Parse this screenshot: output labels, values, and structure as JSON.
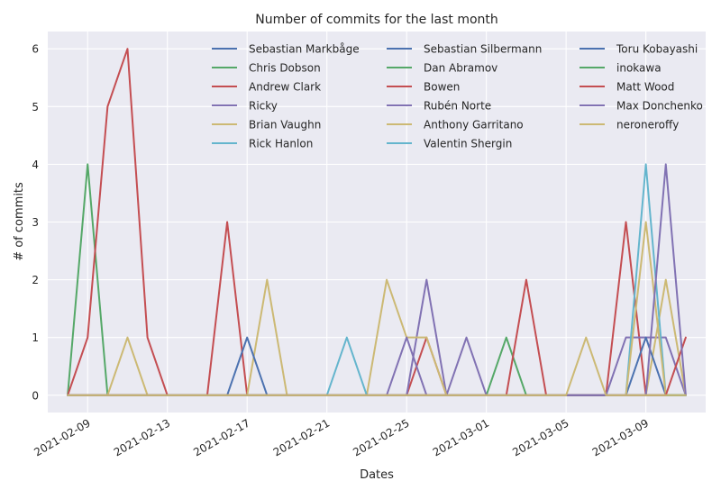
{
  "chart_data": {
    "type": "line",
    "title": "Number of commits for the last month",
    "xlabel": "Dates",
    "ylabel": "# of commits",
    "x_start": "2021-02-08",
    "x_end": "2021-03-11",
    "xlim": [
      "2021-02-07",
      "2021-03-12"
    ],
    "ylim": [
      -0.3,
      6.3
    ],
    "yticks": [
      0,
      1,
      2,
      3,
      4,
      5,
      6
    ],
    "xtick_labels": [
      "2021-02-09",
      "2021-02-13",
      "2021-02-17",
      "2021-02-21",
      "2021-02-25",
      "2021-03-01",
      "2021-03-05",
      "2021-03-09"
    ],
    "grid": true,
    "legend": {
      "placement": "top-right",
      "columns": 3
    },
    "colors": {
      "background": "#eaeaf2",
      "grid": "#ffffff",
      "text": "#262626"
    },
    "series": [
      {
        "name": "Sebastian Markbåge",
        "color": "#4c72b0",
        "values": [
          0,
          0,
          0,
          0,
          0,
          0,
          0,
          0,
          0,
          0,
          0,
          0,
          0,
          0,
          0,
          0,
          0,
          0,
          0,
          0,
          0,
          0,
          0,
          0,
          0,
          0,
          0,
          0,
          0,
          0,
          0,
          0
        ]
      },
      {
        "name": "Chris Dobson",
        "color": "#55a868",
        "values": [
          0,
          4,
          0,
          0,
          0,
          0,
          0,
          0,
          0,
          0,
          0,
          0,
          0,
          0,
          0,
          0,
          0,
          0,
          0,
          0,
          0,
          0,
          1,
          0,
          0,
          0,
          0,
          0,
          0,
          0,
          0,
          0
        ]
      },
      {
        "name": "Andrew Clark",
        "color": "#c44e52",
        "values": [
          0,
          1,
          5,
          6,
          1,
          0,
          0,
          0,
          3,
          0,
          0,
          0,
          0,
          0,
          0,
          0,
          0,
          0,
          1,
          0,
          0,
          0,
          0,
          2,
          0,
          0,
          0,
          0,
          3,
          0,
          0,
          0
        ]
      },
      {
        "name": "Ricky",
        "color": "#8172b3",
        "values": [
          0,
          0,
          0,
          0,
          0,
          0,
          0,
          0,
          0,
          0,
          0,
          0,
          0,
          0,
          0,
          0,
          0,
          0,
          2,
          0,
          1,
          0,
          0,
          0,
          0,
          0,
          0,
          0,
          1,
          1,
          1,
          0
        ]
      },
      {
        "name": "Brian Vaughn",
        "color": "#ccb974",
        "values": [
          0,
          0,
          0,
          1,
          0,
          0,
          0,
          0,
          0,
          0,
          2,
          0,
          0,
          0,
          0,
          0,
          2,
          1,
          1,
          0,
          0,
          0,
          0,
          0,
          0,
          0,
          0,
          0,
          0,
          0,
          2,
          0
        ]
      },
      {
        "name": "Rick Hanlon",
        "color": "#64b5cd",
        "values": [
          0,
          0,
          0,
          0,
          0,
          0,
          0,
          0,
          0,
          0,
          0,
          0,
          0,
          0,
          1,
          0,
          0,
          0,
          0,
          0,
          0,
          0,
          0,
          0,
          0,
          0,
          0,
          0,
          0,
          4,
          0,
          0
        ]
      },
      {
        "name": "Sebastian Silbermann",
        "color": "#4c72b0",
        "values": [
          0,
          0,
          0,
          0,
          0,
          0,
          0,
          0,
          0,
          1,
          0,
          0,
          0,
          0,
          0,
          0,
          0,
          0,
          0,
          0,
          0,
          0,
          0,
          0,
          0,
          0,
          0,
          0,
          0,
          1,
          0,
          0
        ]
      },
      {
        "name": "Dan Abramov",
        "color": "#55a868",
        "values": [
          0,
          0,
          0,
          0,
          0,
          0,
          0,
          0,
          0,
          0,
          0,
          0,
          0,
          0,
          0,
          0,
          0,
          0,
          0,
          0,
          0,
          0,
          0,
          0,
          0,
          0,
          0,
          0,
          0,
          0,
          0,
          0
        ]
      },
      {
        "name": "Bowen",
        "color": "#c44e52",
        "values": [
          0,
          0,
          0,
          0,
          0,
          0,
          0,
          0,
          0,
          0,
          0,
          0,
          0,
          0,
          0,
          0,
          0,
          0,
          0,
          0,
          0,
          0,
          0,
          0,
          0,
          0,
          0,
          0,
          0,
          0,
          0,
          0
        ]
      },
      {
        "name": "Rubén Norte",
        "color": "#8172b3",
        "values": [
          0,
          0,
          0,
          0,
          0,
          0,
          0,
          0,
          0,
          0,
          0,
          0,
          0,
          0,
          0,
          0,
          0,
          1,
          0,
          0,
          0,
          0,
          0,
          0,
          0,
          0,
          0,
          0,
          0,
          0,
          0,
          0
        ]
      },
      {
        "name": "Anthony Garritano",
        "color": "#ccb974",
        "values": [
          0,
          0,
          0,
          0,
          0,
          0,
          0,
          0,
          0,
          0,
          0,
          0,
          0,
          0,
          0,
          0,
          0,
          0,
          0,
          0,
          0,
          0,
          0,
          0,
          0,
          0,
          0,
          0,
          0,
          3,
          0,
          0
        ]
      },
      {
        "name": "Valentin Shergin",
        "color": "#64b5cd",
        "values": [
          0,
          0,
          0,
          0,
          0,
          0,
          0,
          0,
          0,
          0,
          0,
          0,
          0,
          0,
          0,
          0,
          0,
          0,
          0,
          0,
          0,
          0,
          0,
          0,
          0,
          0,
          0,
          0,
          0,
          0,
          0,
          0
        ]
      },
      {
        "name": "Toru Kobayashi",
        "color": "#4c72b0",
        "values": [
          0,
          0,
          0,
          0,
          0,
          0,
          0,
          0,
          0,
          0,
          0,
          0,
          0,
          0,
          0,
          0,
          0,
          0,
          0,
          0,
          0,
          0,
          0,
          0,
          0,
          0,
          0,
          0,
          0,
          0,
          0,
          0
        ]
      },
      {
        "name": "inokawa",
        "color": "#55a868",
        "values": [
          0,
          0,
          0,
          0,
          0,
          0,
          0,
          0,
          0,
          0,
          0,
          0,
          0,
          0,
          0,
          0,
          0,
          0,
          0,
          0,
          0,
          0,
          0,
          0,
          0,
          0,
          0,
          0,
          0,
          0,
          0,
          0
        ]
      },
      {
        "name": "Matt Wood",
        "color": "#c44e52",
        "values": [
          0,
          0,
          0,
          0,
          0,
          0,
          0,
          0,
          0,
          0,
          0,
          0,
          0,
          0,
          0,
          0,
          0,
          0,
          0,
          0,
          0,
          0,
          0,
          0,
          0,
          0,
          0,
          0,
          0,
          0,
          0,
          1
        ]
      },
      {
        "name": "Max Donchenko",
        "color": "#8172b3",
        "values": [
          0,
          0,
          0,
          0,
          0,
          0,
          0,
          0,
          0,
          0,
          0,
          0,
          0,
          0,
          0,
          0,
          0,
          0,
          0,
          0,
          0,
          0,
          0,
          0,
          0,
          0,
          0,
          0,
          0,
          0,
          4,
          0
        ]
      },
      {
        "name": "neroneroffy",
        "color": "#ccb974",
        "values": [
          0,
          0,
          0,
          0,
          0,
          0,
          0,
          0,
          0,
          0,
          0,
          0,
          0,
          0,
          0,
          0,
          0,
          0,
          0,
          0,
          0,
          0,
          0,
          0,
          0,
          0,
          1,
          0,
          0,
          0,
          0,
          0
        ]
      }
    ]
  }
}
